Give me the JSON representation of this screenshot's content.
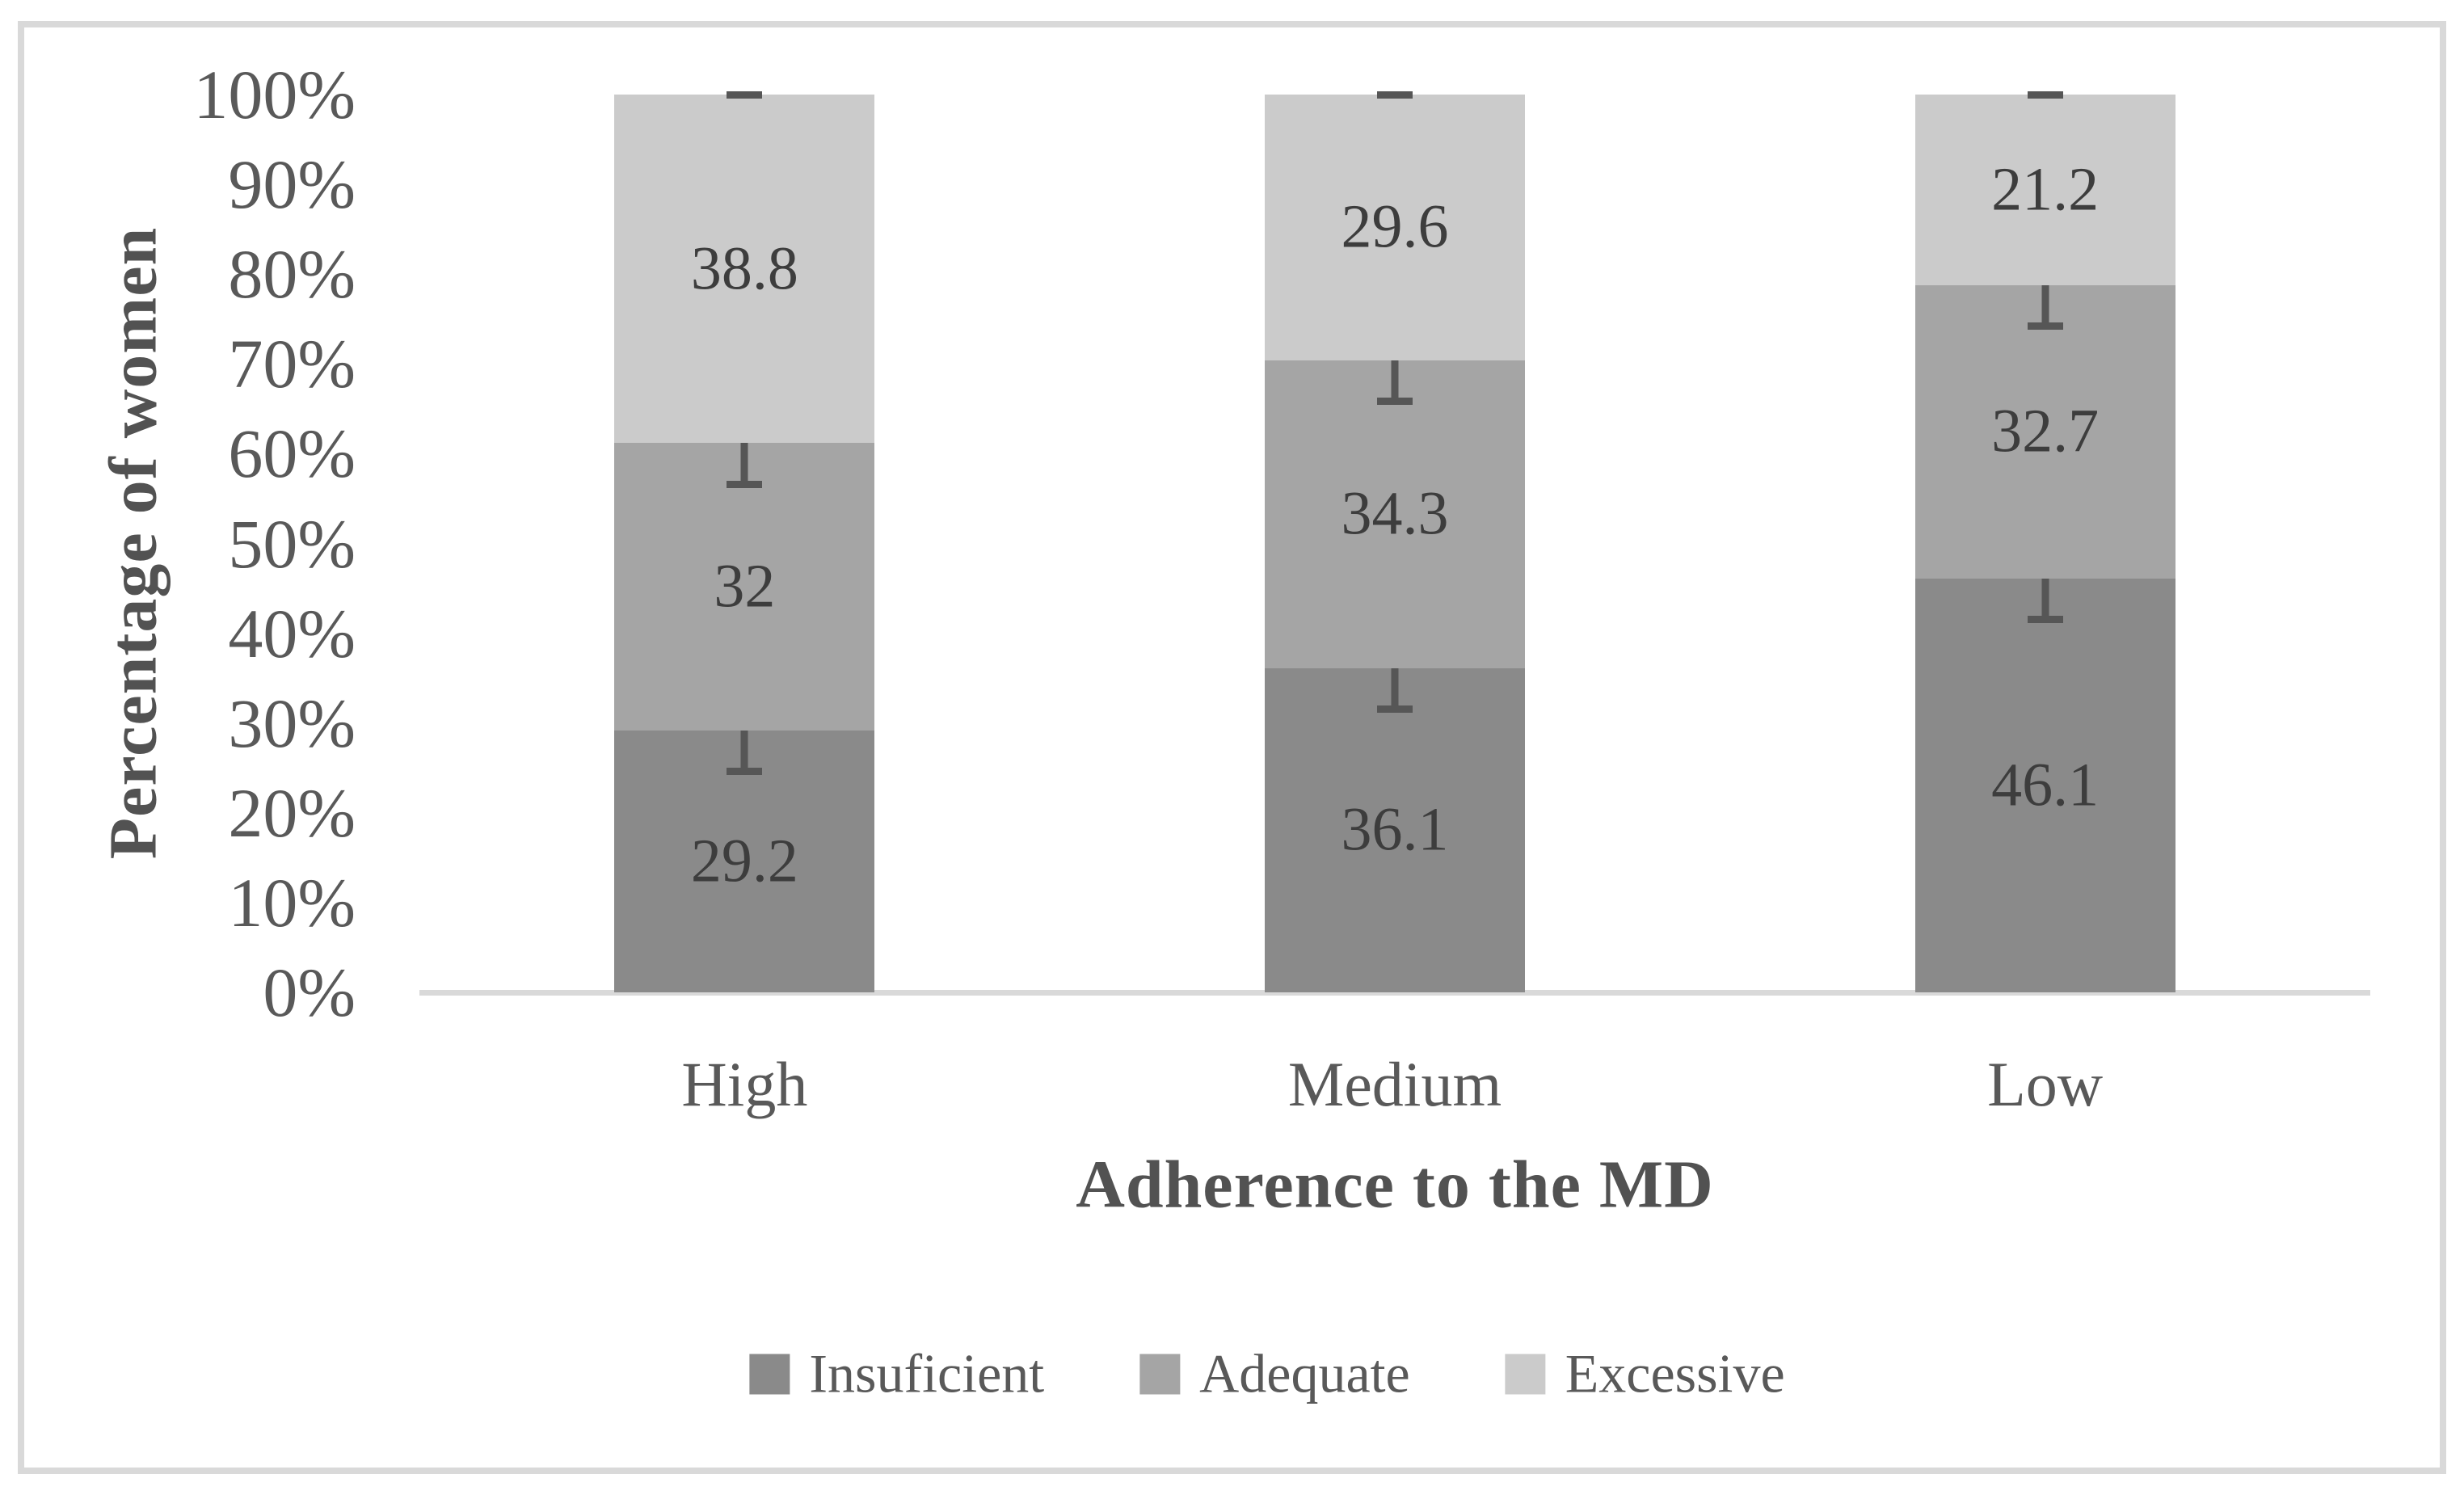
{
  "chart_data": {
    "type": "stacked_bar_100pct",
    "title": "",
    "xlabel": "Adherence to the MD",
    "ylabel": "Percentage of women",
    "categories": [
      "High",
      "Medium",
      "Low"
    ],
    "series": [
      {
        "name": "Insuficient",
        "color": "#8a8a8a",
        "values": [
          29.2,
          36.1,
          46.1
        ]
      },
      {
        "name": "Adequate",
        "color": "#a5a5a5",
        "values": [
          32,
          34.3,
          32.7
        ]
      },
      {
        "name": "Excessive",
        "color": "#cbcbcb",
        "values": [
          38.8,
          29.6,
          21.2
        ]
      }
    ],
    "error_bars": {
      "plus_minus": 5,
      "color": "#565656",
      "locations": "segment boundaries and bar tops"
    },
    "yticks": [
      {
        "value": 0,
        "label": "0%"
      },
      {
        "value": 10,
        "label": "10%"
      },
      {
        "value": 20,
        "label": "20%"
      },
      {
        "value": 30,
        "label": "30%"
      },
      {
        "value": 40,
        "label": "40%"
      },
      {
        "value": 50,
        "label": "50%"
      },
      {
        "value": 60,
        "label": "60%"
      },
      {
        "value": 70,
        "label": "70%"
      },
      {
        "value": 80,
        "label": "80%"
      },
      {
        "value": 90,
        "label": "90%"
      },
      {
        "value": 100,
        "label": "100%"
      }
    ],
    "ylim": [
      0,
      100
    ],
    "grid": false,
    "legend_position": "bottom",
    "colors": {
      "axis_line": "#d9d9d9",
      "figure_border": "#d9d9d9",
      "tick_text": "#595959",
      "data_label_text": "#3d3d3d",
      "title_text": "#525252"
    }
  }
}
